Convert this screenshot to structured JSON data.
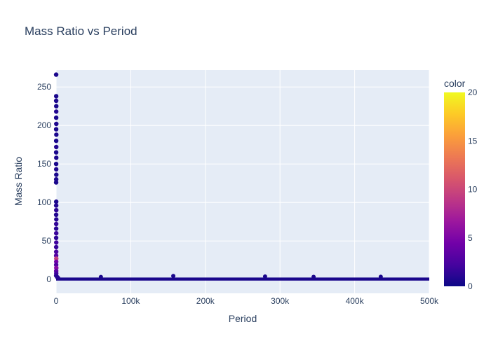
{
  "chart_data": {
    "type": "scatter",
    "title": "Mass Ratio vs Period",
    "xlabel": "Period",
    "ylabel": "Mass Ratio",
    "xlim": [
      0,
      500000
    ],
    "ylim": [
      -18,
      272
    ],
    "x_ticks": [
      {
        "value": 0,
        "label": "0"
      },
      {
        "value": 100000,
        "label": "100k"
      },
      {
        "value": 200000,
        "label": "200k"
      },
      {
        "value": 300000,
        "label": "300k"
      },
      {
        "value": 400000,
        "label": "400k"
      },
      {
        "value": 500000,
        "label": "500k"
      }
    ],
    "y_ticks": [
      {
        "value": 0,
        "label": "0"
      },
      {
        "value": 50,
        "label": "50"
      },
      {
        "value": 100,
        "label": "100"
      },
      {
        "value": 150,
        "label": "150"
      },
      {
        "value": 200,
        "label": "200"
      },
      {
        "value": 250,
        "label": "250"
      }
    ],
    "grid": true,
    "colorbar": {
      "title": "color",
      "range": [
        0,
        20
      ],
      "ticks": [
        {
          "value": 0,
          "label": "0"
        },
        {
          "value": 5,
          "label": "5"
        },
        {
          "value": 10,
          "label": "10"
        },
        {
          "value": 15,
          "label": "15"
        },
        {
          "value": 20,
          "label": "20"
        }
      ],
      "colorscale": [
        "#0d0887",
        "#46039f",
        "#7201a8",
        "#9c179e",
        "#bd3786",
        "#d8576b",
        "#ed7953",
        "#fb9f3a",
        "#fdca26",
        "#f0f921"
      ]
    },
    "points": [
      {
        "x": 50,
        "y": 266,
        "c": 0.5
      },
      {
        "x": 120,
        "y": 238,
        "c": 0.5
      },
      {
        "x": 80,
        "y": 232,
        "c": 0.6
      },
      {
        "x": 200,
        "y": 225,
        "c": 0.5
      },
      {
        "x": 150,
        "y": 218,
        "c": 0.8
      },
      {
        "x": 100,
        "y": 210,
        "c": 0.5
      },
      {
        "x": 250,
        "y": 202,
        "c": 0.7
      },
      {
        "x": 60,
        "y": 195,
        "c": 0.5
      },
      {
        "x": 300,
        "y": 188,
        "c": 0.6
      },
      {
        "x": 90,
        "y": 180,
        "c": 0.5
      },
      {
        "x": 180,
        "y": 172,
        "c": 0.9
      },
      {
        "x": 70,
        "y": 165,
        "c": 0.5
      },
      {
        "x": 220,
        "y": 158,
        "c": 0.6
      },
      {
        "x": 40,
        "y": 150,
        "c": 0.5
      },
      {
        "x": 130,
        "y": 143,
        "c": 0.7
      },
      {
        "x": 260,
        "y": 136,
        "c": 0.5
      },
      {
        "x": 110,
        "y": 130,
        "c": 0.6
      },
      {
        "x": 30,
        "y": 126,
        "c": 0.5
      },
      {
        "x": 150,
        "y": 101,
        "c": 0.6
      },
      {
        "x": 90,
        "y": 96,
        "c": 0.9
      },
      {
        "x": 200,
        "y": 90,
        "c": 1.2
      },
      {
        "x": 60,
        "y": 84,
        "c": 0.8
      },
      {
        "x": 240,
        "y": 78,
        "c": 1.0
      },
      {
        "x": 120,
        "y": 72,
        "c": 1.5
      },
      {
        "x": 80,
        "y": 66,
        "c": 1.1
      },
      {
        "x": 180,
        "y": 60,
        "c": 1.8
      },
      {
        "x": 50,
        "y": 54,
        "c": 1.3
      },
      {
        "x": 210,
        "y": 48,
        "c": 2.0
      },
      {
        "x": 100,
        "y": 42,
        "c": 1.6
      },
      {
        "x": 140,
        "y": 36,
        "c": 2.4
      },
      {
        "x": 70,
        "y": 31,
        "c": 3.0
      },
      {
        "x": 230,
        "y": 27,
        "c": 9.5
      },
      {
        "x": 160,
        "y": 23,
        "c": 4.5
      },
      {
        "x": 90,
        "y": 19,
        "c": 2.8
      },
      {
        "x": 260,
        "y": 15,
        "c": 5.5
      },
      {
        "x": 120,
        "y": 11,
        "c": 3.5
      },
      {
        "x": 200,
        "y": 8,
        "c": 2.2
      },
      {
        "x": 60,
        "y": 5,
        "c": 1.5
      },
      {
        "x": 1500,
        "y": 3,
        "c": 0.8
      },
      {
        "x": 2500,
        "y": 2,
        "c": 1.0
      }
    ],
    "band": {
      "x_start": 0,
      "x_end": 500000,
      "y_low": -1.5,
      "y_high": 2.5,
      "color_value": 0.5,
      "spikes": [
        {
          "x": 157000,
          "y": 4.5
        },
        {
          "x": 280000,
          "y": 3.8
        },
        {
          "x": 435000,
          "y": 3.5
        },
        {
          "x": 60000,
          "y": 3.2
        },
        {
          "x": 345000,
          "y": 3.4
        }
      ]
    }
  }
}
